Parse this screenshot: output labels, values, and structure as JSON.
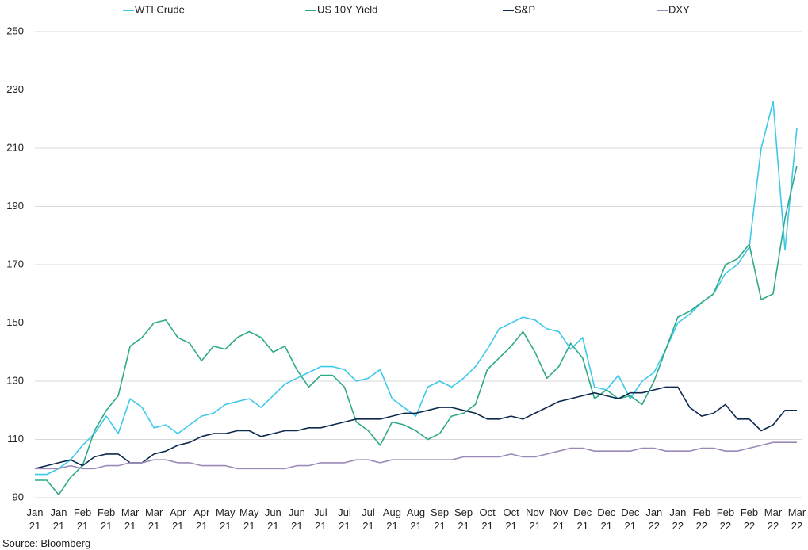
{
  "chart_data": {
    "type": "line",
    "source": "Source: Bloomberg",
    "categories": [
      "Jan\n21",
      null,
      "Jan\n21",
      null,
      "Feb\n21",
      null,
      "Feb\n21",
      null,
      "Mar\n21",
      null,
      "Mar\n21",
      null,
      "Apr\n21",
      null,
      "Apr\n21",
      null,
      "May\n21",
      null,
      "May\n21",
      null,
      "Jun\n21",
      null,
      "Jun\n21",
      null,
      "Jul\n21",
      null,
      "Jul\n21",
      null,
      "Jul\n21",
      null,
      "Aug\n21",
      null,
      "Aug\n21",
      null,
      "Sep\n21",
      null,
      "Sep\n21",
      null,
      "Oct\n21",
      null,
      "Oct\n21",
      null,
      "Nov\n21",
      null,
      "Nov\n21",
      null,
      "Dec\n21",
      null,
      "Dec\n21",
      null,
      "Dec\n21",
      null,
      "Jan\n22",
      null,
      "Jan\n22",
      null,
      "Feb\n22",
      null,
      "Feb\n22",
      null,
      "Feb\n22",
      null,
      "Mar\n22",
      null,
      "Mar\n22"
    ],
    "ylim": [
      90,
      250
    ],
    "yticks": [
      90,
      110,
      130,
      150,
      170,
      190,
      210,
      230,
      250
    ],
    "grid": true,
    "legend": "top",
    "series": [
      {
        "name": "WTI Crude",
        "color": "#3ec9ea",
        "values": [
          98,
          98,
          100,
          103,
          108,
          112,
          118,
          112,
          124,
          121,
          114,
          115,
          112,
          115,
          118,
          119,
          122,
          123,
          124,
          121,
          125,
          129,
          131,
          133,
          135,
          135,
          134,
          130,
          131,
          134,
          124,
          121,
          118,
          128,
          130,
          128,
          131,
          135,
          141,
          148,
          150,
          152,
          151,
          148,
          147,
          141,
          145,
          128,
          127,
          132,
          124,
          130,
          133,
          141,
          150,
          153,
          157,
          160,
          167,
          170,
          176,
          210,
          226,
          175,
          217
        ]
      },
      {
        "name": "US 10Y Yield",
        "color": "#2ea98a",
        "values": [
          96,
          96,
          91,
          97,
          101,
          113,
          120,
          125,
          142,
          145,
          150,
          151,
          145,
          143,
          137,
          142,
          141,
          145,
          147,
          145,
          140,
          142,
          134,
          128,
          132,
          132,
          128,
          116,
          113,
          108,
          116,
          115,
          113,
          110,
          112,
          118,
          119,
          122,
          134,
          138,
          142,
          147,
          140,
          131,
          135,
          143,
          138,
          124,
          127,
          124,
          125,
          122,
          130,
          141,
          152,
          154,
          157,
          160,
          170,
          172,
          177,
          158,
          160,
          186,
          204
        ]
      },
      {
        "name": "S&P",
        "color": "#0d2a4e",
        "values": [
          100,
          101,
          102,
          103,
          101,
          104,
          105,
          105,
          102,
          102,
          105,
          106,
          108,
          109,
          111,
          112,
          112,
          113,
          113,
          111,
          112,
          113,
          113,
          114,
          114,
          115,
          116,
          117,
          117,
          117,
          118,
          119,
          119,
          120,
          121,
          121,
          120,
          119,
          117,
          117,
          118,
          117,
          119,
          121,
          123,
          124,
          125,
          126,
          125,
          124,
          126,
          126,
          127,
          128,
          128,
          121,
          118,
          119,
          122,
          117,
          117,
          113,
          115,
          120,
          120
        ]
      },
      {
        "name": "DXY",
        "color": "#9b8ab8",
        "values": [
          100,
          100,
          100,
          101,
          100,
          100,
          101,
          101,
          102,
          102,
          103,
          103,
          102,
          102,
          101,
          101,
          101,
          100,
          100,
          100,
          100,
          100,
          101,
          101,
          102,
          102,
          102,
          103,
          103,
          102,
          103,
          103,
          103,
          103,
          103,
          103,
          104,
          104,
          104,
          104,
          105,
          104,
          104,
          105,
          106,
          107,
          107,
          106,
          106,
          106,
          106,
          107,
          107,
          106,
          106,
          106,
          107,
          107,
          106,
          106,
          107,
          108,
          109,
          109,
          109
        ]
      }
    ]
  }
}
